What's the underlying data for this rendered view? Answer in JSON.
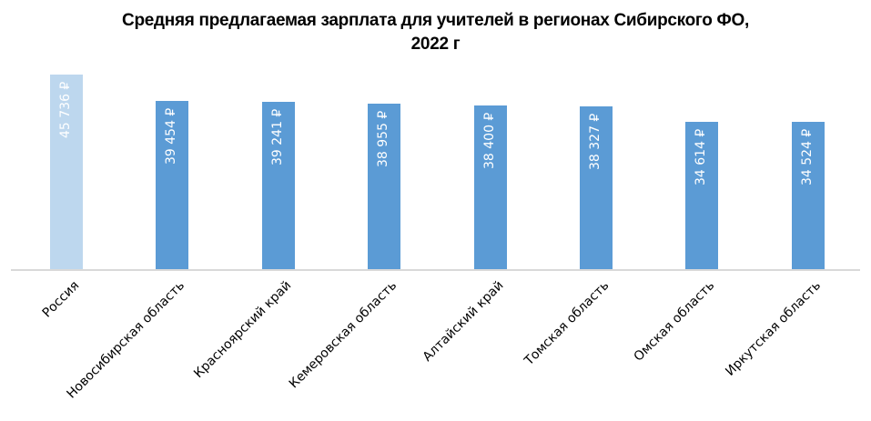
{
  "title_line1": "Средняя предлагаемая зарплата для учителей в регионах Сибирского ФО,",
  "title_line2": "2022 г",
  "colors": {
    "highlight": "#bdd7ee",
    "default": "#5b9bd5",
    "axis": "#d9d9d9"
  },
  "bars": [
    {
      "label": "Россия",
      "value_label": "45 736 ₽"
    },
    {
      "label": "Новосибирская область",
      "value_label": "39 454 ₽"
    },
    {
      "label": "Красноярский край",
      "value_label": "39 241 ₽"
    },
    {
      "label": "Кемеровская область",
      "value_label": "38 955 ₽"
    },
    {
      "label": "Алтайский край",
      "value_label": "38 400 ₽"
    },
    {
      "label": "Томская область",
      "value_label": "38 327 ₽"
    },
    {
      "label": "Омская область",
      "value_label": "34 614 ₽"
    },
    {
      "label": "Иркутская область",
      "value_label": "34 524 ₽"
    }
  ],
  "chart_data": {
    "type": "bar",
    "title": "Средняя предлагаемая зарплата для учителей в регионах Сибирского ФО, 2022 г",
    "categories": [
      "Россия",
      "Новосибирская область",
      "Красноярский край",
      "Кемеровская область",
      "Алтайский край",
      "Томская область",
      "Омская область",
      "Иркутская область"
    ],
    "values": [
      45736,
      39454,
      39241,
      38955,
      38400,
      38327,
      34614,
      34524
    ],
    "unit": "₽",
    "xlabel": "",
    "ylabel": "",
    "grid": false,
    "legend": "none",
    "data_labels": "inside rotated"
  }
}
